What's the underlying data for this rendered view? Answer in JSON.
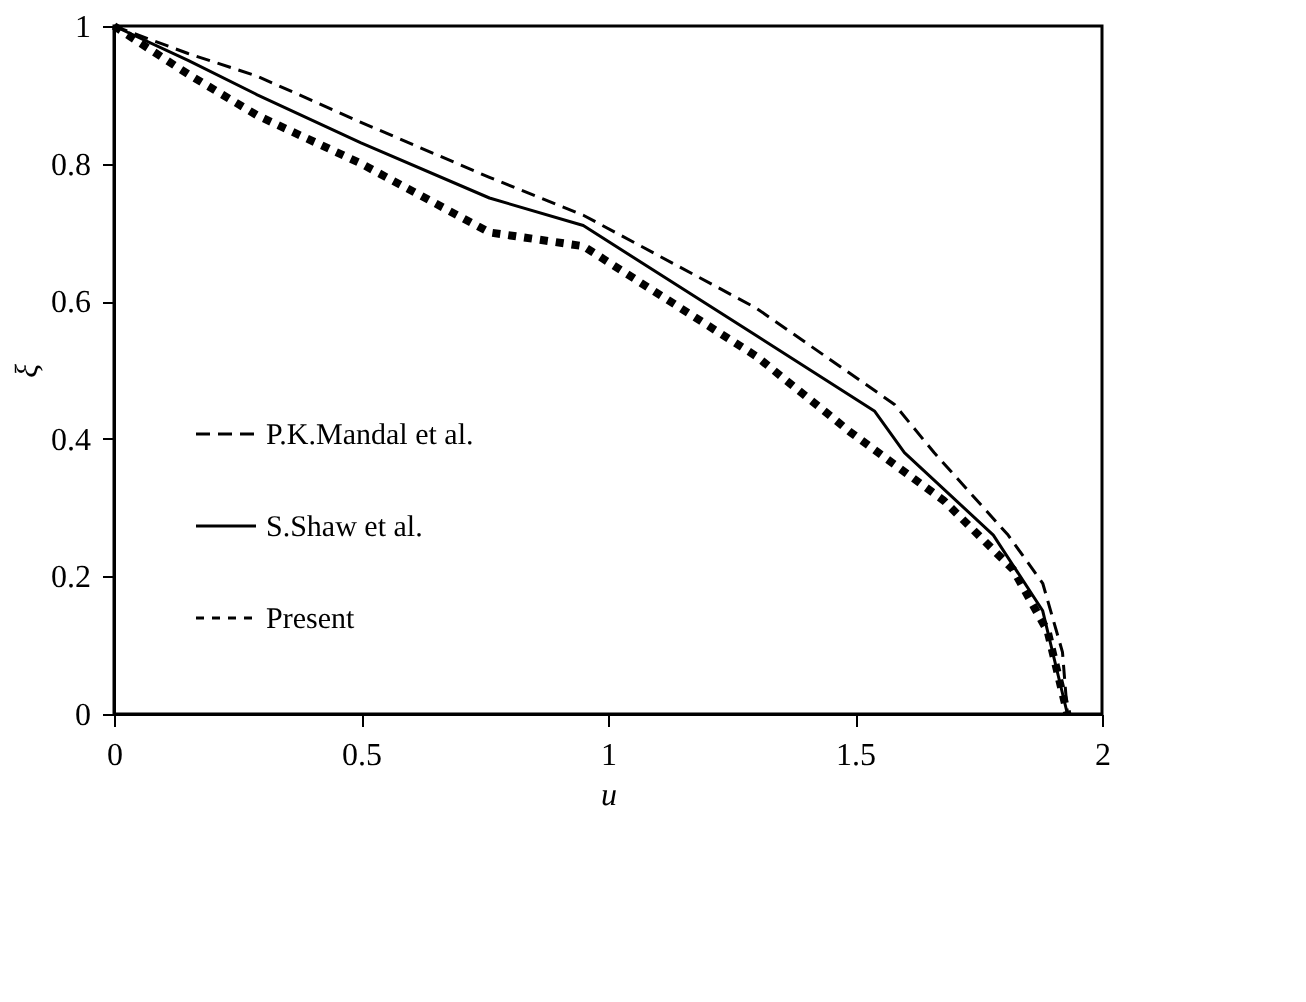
{
  "chart_data": {
    "type": "line",
    "xlabel": "u",
    "ylabel": "ξ",
    "xlim": [
      0,
      2
    ],
    "ylim": [
      0,
      1
    ],
    "xticks": [
      0,
      0.5,
      1,
      1.5,
      2
    ],
    "yticks": [
      0,
      0.2,
      0.4,
      0.6,
      0.8,
      1
    ],
    "grid": false,
    "legend": "bottom left",
    "marker": "none",
    "series": [
      {
        "name": "P.K.Mandal et al.",
        "color": "#000000",
        "line_style": "dashed",
        "x": [
          0,
          0.15,
          0.29,
          0.5,
          0.76,
          0.95,
          1.3,
          1.58,
          1.66,
          1.81,
          1.88,
          1.92,
          1.93
        ],
        "values": [
          1,
          0.96,
          0.927,
          0.86,
          0.78,
          0.725,
          0.59,
          0.45,
          0.38,
          0.26,
          0.19,
          0.09,
          0
        ]
      },
      {
        "name": "S.Shaw et al.",
        "color": "#000000",
        "line_style": "solid",
        "x": [
          0,
          0.15,
          0.29,
          0.5,
          0.76,
          0.95,
          1.3,
          1.54,
          1.6,
          1.78,
          1.88,
          1.93
        ],
        "values": [
          1,
          0.95,
          0.9,
          0.83,
          0.75,
          0.71,
          0.55,
          0.44,
          0.38,
          0.26,
          0.15,
          0
        ]
      },
      {
        "name": "Present",
        "color": "#000000",
        "line_style": "dotted",
        "x": [
          0,
          0.15,
          0.29,
          0.5,
          0.76,
          0.95,
          1.3,
          1.43,
          1.49,
          1.68,
          1.82,
          1.89,
          1.93
        ],
        "values": [
          1,
          0.93,
          0.87,
          0.8,
          0.7,
          0.68,
          0.52,
          0.445,
          0.41,
          0.31,
          0.21,
          0.12,
          0
        ]
      }
    ]
  }
}
